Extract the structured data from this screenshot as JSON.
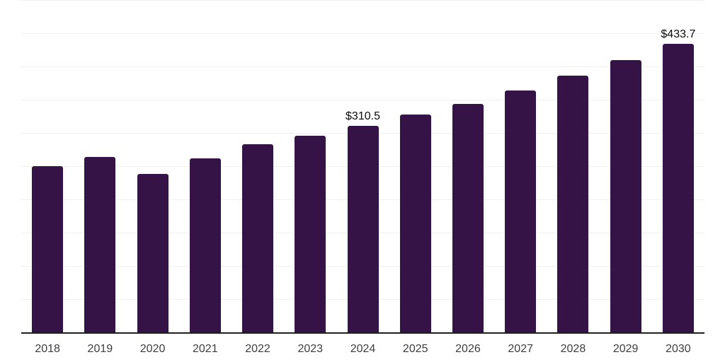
{
  "chart_data": {
    "type": "bar",
    "title": "",
    "xlabel": "",
    "ylabel": "",
    "categories": [
      "2018",
      "2019",
      "2020",
      "2021",
      "2022",
      "2023",
      "2024",
      "2025",
      "2026",
      "2027",
      "2028",
      "2029",
      "2030"
    ],
    "values": [
      250,
      264,
      238,
      262,
      283,
      296,
      310.5,
      328,
      344,
      364,
      386,
      410,
      433.7
    ],
    "bar_value_labels": [
      "",
      "",
      "",
      "",
      "",
      "",
      "$310.5",
      "",
      "",
      "",
      "",
      "",
      "$433.7"
    ],
    "ylim": [
      0,
      500
    ],
    "gridline_step": 50,
    "grid": "horizontal",
    "y_tick_labels_visible": false,
    "legend_position": "none",
    "colors": {
      "bar": "#361347",
      "value_label": "#0a0a0a",
      "tick_label": "#3d3d3d",
      "gridline": "#f0f0f0",
      "axis_line": "#1f1f1f",
      "background": "#ffffff"
    }
  }
}
